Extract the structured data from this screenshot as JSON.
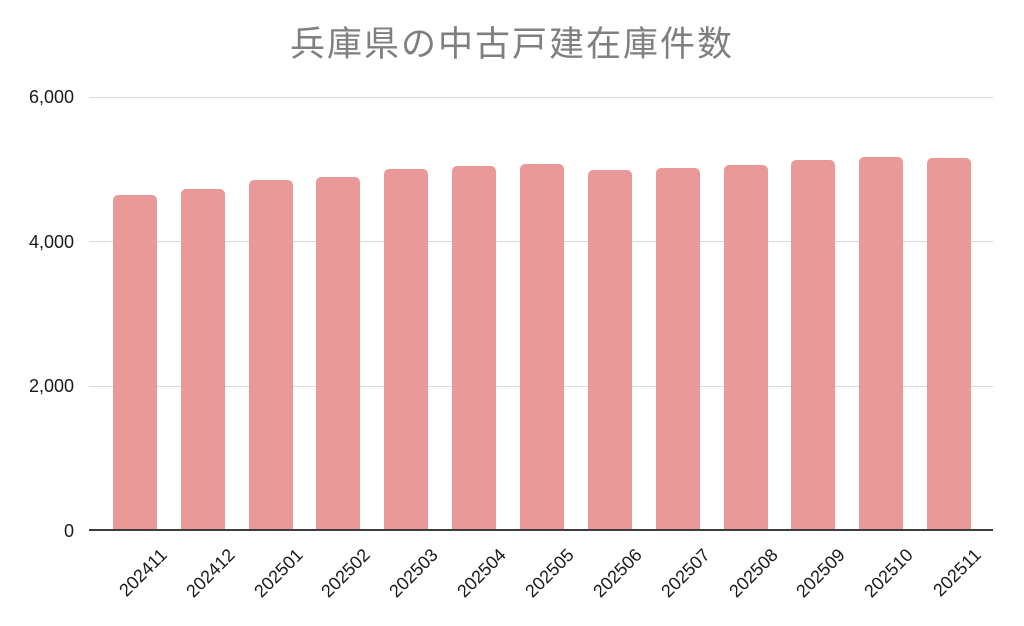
{
  "chart_data": {
    "type": "bar",
    "title": "兵庫県の中古戸建在庫件数",
    "categories": [
      "202411",
      "202412",
      "202501",
      "202502",
      "202503",
      "202504",
      "202505",
      "202506",
      "202507",
      "202508",
      "202509",
      "202510",
      "202511"
    ],
    "values": [
      4645,
      4730,
      4850,
      4895,
      5010,
      5040,
      5080,
      4990,
      5020,
      5065,
      5130,
      5170,
      5160
    ],
    "xlabel": "",
    "ylabel": "",
    "ylim": [
      0,
      6000
    ],
    "yticks": [
      0,
      2000,
      4000,
      6000
    ],
    "ytick_labels": [
      "0",
      "2,000",
      "4,000",
      "6,000"
    ],
    "grid": true,
    "legend_position": "none",
    "bar_color": "#ea9999",
    "grid_color": "#d9d9d9",
    "axis_line_color": "#3d3d3d",
    "title_color": "#7f7f7f",
    "tick_label_color": "#1a1a1a",
    "background_color": "#ffffff"
  }
}
